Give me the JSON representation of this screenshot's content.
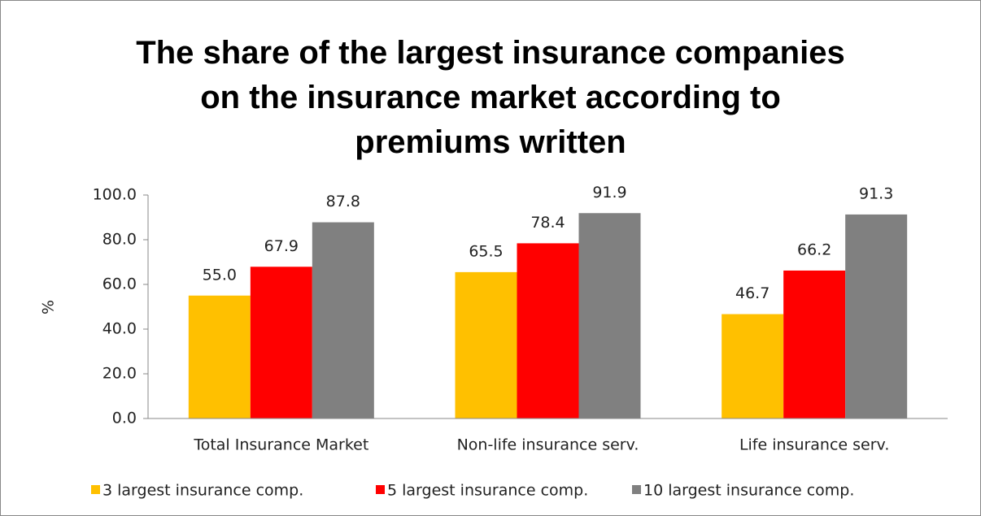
{
  "chart_data": {
    "type": "bar",
    "title": "The share of the largest insurance companies on the insurance market according to premiums written",
    "ylabel": "%",
    "categories": [
      "Total Insurance Market",
      "Non-life insurance serv.",
      "Life insurance serv."
    ],
    "series": [
      {
        "name": "3 largest insurance comp.",
        "color": "#FFC000",
        "values": [
          55.0,
          65.5,
          46.7
        ],
        "value_labels": [
          "55.0",
          "65.5",
          "46.7"
        ]
      },
      {
        "name": "5 largest insurance comp.",
        "color": "#FF0000",
        "values": [
          67.9,
          78.4,
          66.2
        ]
      },
      {
        "name": "10 largest insurance comp.",
        "color": "#808080",
        "values": [
          87.8,
          91.9,
          91.3
        ]
      }
    ],
    "ylim": [
      0,
      100
    ],
    "yticks": [
      {
        "value": 0,
        "label": "0.0"
      },
      {
        "value": 20,
        "label": "20.0"
      },
      {
        "value": 40,
        "label": "40.0"
      },
      {
        "value": 60,
        "label": "60.0"
      },
      {
        "value": 80,
        "label": "80.0"
      },
      {
        "value": 100,
        "label": "100.0"
      }
    ],
    "legend": "bottom"
  }
}
